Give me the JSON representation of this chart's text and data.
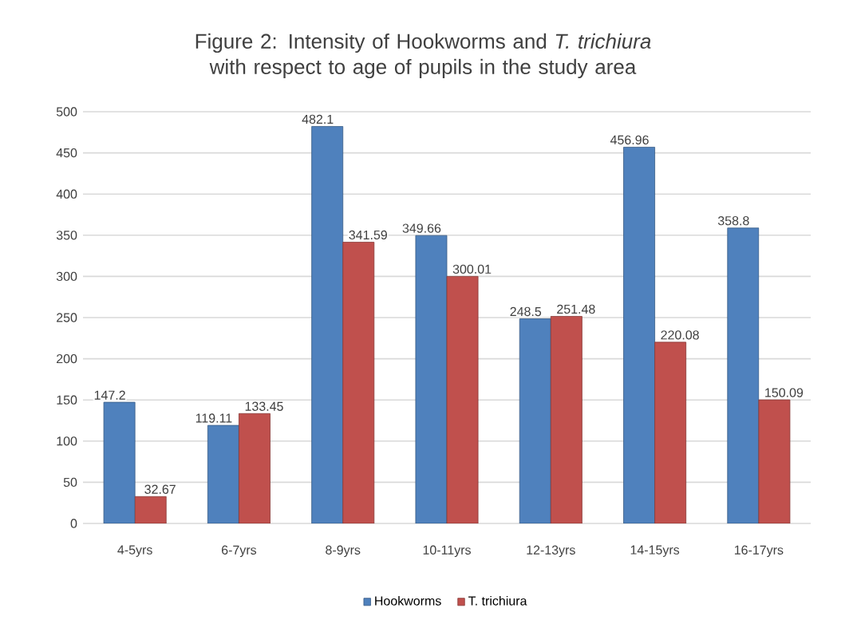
{
  "chart_data": {
    "type": "bar",
    "title": "Figure 2: Intensity  of Hookworms and *T. trichiura* with respect to age of pupils in the study area",
    "categories": [
      "4-5yrs",
      "6-7yrs",
      "8-9yrs",
      "10-11yrs",
      "12-13yrs",
      "14-15yrs",
      "16-17yrs"
    ],
    "series": [
      {
        "name": "Hookworms",
        "color": "#4f81bd",
        "values": [
          147.2,
          119.11,
          482.1,
          349.66,
          248.5,
          456.96,
          358.8
        ]
      },
      {
        "name": "T. trichiura",
        "color": "#c0504d",
        "values": [
          32.67,
          133.45,
          341.59,
          300.01,
          251.48,
          220.08,
          150.09
        ]
      }
    ],
    "ylim": [
      0,
      500
    ],
    "yticks": [
      0,
      50,
      100,
      150,
      200,
      250,
      300,
      350,
      400,
      450,
      500
    ],
    "grid": "y",
    "legend": "bottom",
    "data_labels": true
  }
}
